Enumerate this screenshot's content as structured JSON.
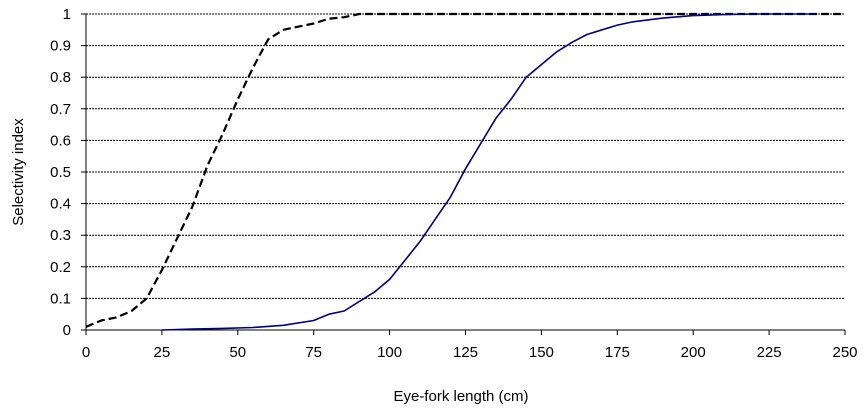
{
  "chart_data": {
    "type": "line",
    "title": "",
    "xlabel": "Eye-fork length (cm)",
    "ylabel": "Selectivity index",
    "xlim": [
      0,
      250
    ],
    "ylim": [
      0,
      1
    ],
    "x_ticks": [
      "0",
      "25",
      "50",
      "75",
      "100",
      "125",
      "150",
      "175",
      "200",
      "225",
      "250"
    ],
    "y_ticks": [
      "0",
      "0.1",
      "0.2",
      "0.3",
      "0.4",
      "0.5",
      "0.6",
      "0.7",
      "0.8",
      "0.9",
      "1"
    ],
    "grid": "horizontal dashed",
    "legend": "none",
    "series": [
      {
        "style": "dashed",
        "color": "#000000",
        "points": [
          [
            0,
            0.01
          ],
          [
            5,
            0.03
          ],
          [
            10,
            0.04
          ],
          [
            15,
            0.06
          ],
          [
            20,
            0.1
          ],
          [
            25,
            0.19
          ],
          [
            30,
            0.29
          ],
          [
            35,
            0.39
          ],
          [
            40,
            0.52
          ],
          [
            45,
            0.62
          ],
          [
            50,
            0.73
          ],
          [
            55,
            0.83
          ],
          [
            60,
            0.92
          ],
          [
            65,
            0.95
          ],
          [
            70,
            0.96
          ],
          [
            75,
            0.97
          ],
          [
            80,
            0.985
          ],
          [
            85,
            0.99
          ],
          [
            90,
            1.0
          ],
          [
            100,
            1.0
          ],
          [
            150,
            1.0
          ],
          [
            200,
            1.0
          ],
          [
            250,
            1.0
          ]
        ]
      },
      {
        "style": "solid",
        "color": "#000080",
        "points": [
          [
            25,
            0.0
          ],
          [
            35,
            0.003
          ],
          [
            45,
            0.005
          ],
          [
            55,
            0.008
          ],
          [
            65,
            0.015
          ],
          [
            75,
            0.03
          ],
          [
            80,
            0.05
          ],
          [
            85,
            0.06
          ],
          [
            90,
            0.09
          ],
          [
            95,
            0.12
          ],
          [
            100,
            0.16
          ],
          [
            105,
            0.22
          ],
          [
            110,
            0.28
          ],
          [
            115,
            0.35
          ],
          [
            120,
            0.42
          ],
          [
            125,
            0.51
          ],
          [
            130,
            0.59
          ],
          [
            135,
            0.67
          ],
          [
            140,
            0.73
          ],
          [
            145,
            0.8
          ],
          [
            150,
            0.84
          ],
          [
            155,
            0.88
          ],
          [
            160,
            0.91
          ],
          [
            165,
            0.935
          ],
          [
            170,
            0.95
          ],
          [
            175,
            0.965
          ],
          [
            180,
            0.975
          ],
          [
            190,
            0.987
          ],
          [
            200,
            0.995
          ],
          [
            210,
            0.998
          ],
          [
            220,
            1.0
          ],
          [
            230,
            1.0
          ],
          [
            240,
            1.0
          ]
        ]
      }
    ]
  }
}
